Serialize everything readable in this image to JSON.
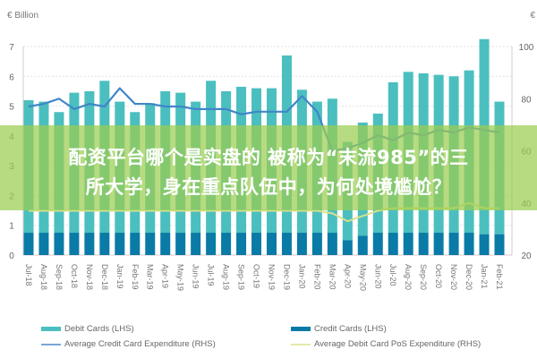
{
  "chart_data": {
    "type": "bar",
    "title": "",
    "left_unit_label": "€ Billion",
    "right_unit_label": "€",
    "xlabel": "",
    "ylabel_left": "€ Billion",
    "ylabel_right": "€",
    "ylim_left": [
      0,
      7
    ],
    "ylim_right": [
      20,
      100
    ],
    "yticks_left": [
      0,
      1,
      2,
      3,
      4,
      5,
      6,
      7
    ],
    "yticks_right": [
      20,
      40,
      60,
      80,
      100
    ],
    "grid": true,
    "legend_position": "bottom",
    "categories": [
      "Jul-18",
      "Aug-18",
      "Sep-18",
      "Oct-18",
      "Nov-18",
      "Dec-18",
      "Jan-19",
      "Feb-19",
      "Mar-19",
      "Apr-19",
      "May-19",
      "Jun-19",
      "Jul-19",
      "Aug-19",
      "Sep-19",
      "Oct-19",
      "Nov-19",
      "Dec-19",
      "Jan-20",
      "Feb-20",
      "Mar-20",
      "Apr-20",
      "May-20",
      "Jun-20",
      "Jul-20",
      "Aug-20",
      "Sep-20",
      "Oct-20",
      "Nov-20",
      "Dec-20",
      "Jan-21",
      "Feb-21"
    ],
    "series": [
      {
        "name": "Debit Cards (LHS)",
        "type": "bar",
        "axis": "left",
        "color": "#4bbfbf",
        "values": [
          4.45,
          4.4,
          4.05,
          4.7,
          4.75,
          5.1,
          4.4,
          4.05,
          4.35,
          4.75,
          4.7,
          4.4,
          5.1,
          4.75,
          4.9,
          4.85,
          4.85,
          5.95,
          4.8,
          4.4,
          4.5,
          3.3,
          3.8,
          4.0,
          5.05,
          5.4,
          5.35,
          5.3,
          5.25,
          5.45,
          6.55,
          4.45
        ]
      },
      {
        "name": "Credit Cards (LHS)",
        "type": "bar",
        "axis": "left",
        "color": "#0a7ba6",
        "values": [
          0.75,
          0.75,
          0.75,
          0.75,
          0.75,
          0.75,
          0.75,
          0.75,
          0.75,
          0.75,
          0.75,
          0.75,
          0.75,
          0.75,
          0.75,
          0.75,
          0.75,
          0.75,
          0.75,
          0.75,
          0.75,
          0.5,
          0.65,
          0.75,
          0.75,
          0.75,
          0.75,
          0.75,
          0.75,
          0.75,
          0.7,
          0.7
        ]
      },
      {
        "name": "Average Credit Card Expenditure (RHS)",
        "type": "line",
        "axis": "right",
        "color": "#3f86c8",
        "values": [
          77,
          78,
          80,
          76,
          78,
          77,
          84,
          78,
          78,
          77,
          77,
          76,
          76,
          76,
          74,
          75,
          75,
          75,
          81,
          75,
          60,
          61,
          63,
          66,
          64,
          67,
          66,
          68,
          67,
          69,
          68,
          67
        ]
      },
      {
        "name": "Average Debit Card PoS Expenditure (RHS)",
        "type": "line",
        "axis": "right",
        "color": "#d8e08a",
        "values": [
          37,
          37,
          37,
          37,
          37,
          37,
          37,
          37,
          37,
          37,
          37,
          37,
          37,
          37,
          37,
          37,
          37,
          37,
          37,
          37,
          36,
          33,
          35,
          37,
          38,
          38,
          38,
          38,
          38,
          40,
          38,
          38
        ]
      }
    ]
  },
  "overlay": {
    "headline_line1": "配资平台哪个是实盘的 被称为“末流985”的三",
    "headline_line2": "所大学，身在重点队伍中，为何处境尴尬？"
  },
  "legend": {
    "debit_cards": "Debit Cards (LHS)",
    "credit_cards": "Credit Cards (LHS)",
    "avg_credit": "Average Credit Card Expenditure (RHS)",
    "avg_debit_pos": "Average Debit Card PoS Expenditure (RHS)"
  },
  "colors": {
    "debit": "#4bbfbf",
    "credit": "#0a7ba6",
    "avg_credit_line": "#3f86c8",
    "avg_debit_line": "#d8e08a",
    "overlay": "#9bcd50"
  }
}
